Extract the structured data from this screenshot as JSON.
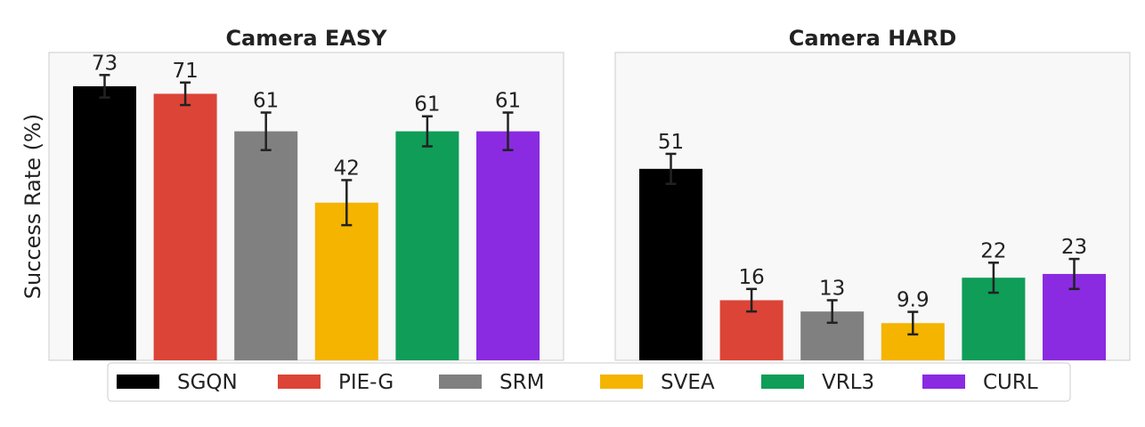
{
  "chart_data": [
    {
      "type": "bar",
      "title": "Camera EASY",
      "ylabel": "Success Rate (%)",
      "xlabel": "",
      "ylim": [
        0,
        82
      ],
      "grid": false,
      "categories": [
        "SGQN",
        "PIE-G",
        "SRM",
        "SVEA",
        "VRL3",
        "CURL"
      ],
      "values": [
        73,
        71,
        61,
        42,
        61,
        61
      ],
      "labels": [
        "73",
        "71",
        "61",
        "42",
        "61",
        "61"
      ],
      "errors": [
        3,
        3,
        5,
        6,
        4,
        5
      ]
    },
    {
      "type": "bar",
      "title": "Camera HARD",
      "ylabel": "",
      "xlabel": "",
      "ylim": [
        0,
        82
      ],
      "grid": false,
      "categories": [
        "SGQN",
        "PIE-G",
        "SRM",
        "SVEA",
        "VRL3",
        "CURL"
      ],
      "values": [
        51,
        16,
        13,
        9.9,
        22,
        23
      ],
      "labels": [
        "51",
        "16",
        "13",
        "9.9",
        "22",
        "23"
      ],
      "errors": [
        4,
        3,
        3,
        3,
        4,
        4
      ]
    }
  ],
  "legend": {
    "position": "bottom-center",
    "entries": [
      "SGQN",
      "PIE-G",
      "SRM",
      "SVEA",
      "VRL3",
      "CURL"
    ]
  },
  "colors": {
    "SGQN": "#000000",
    "PIE-G": "#dc4437",
    "SRM": "#808080",
    "SVEA": "#f4b400",
    "VRL3": "#0f9d58",
    "CURL": "#8a2be2",
    "plot_bg": "#f8f8f8",
    "frame": "#cccccc",
    "error_bar": "#222222"
  }
}
